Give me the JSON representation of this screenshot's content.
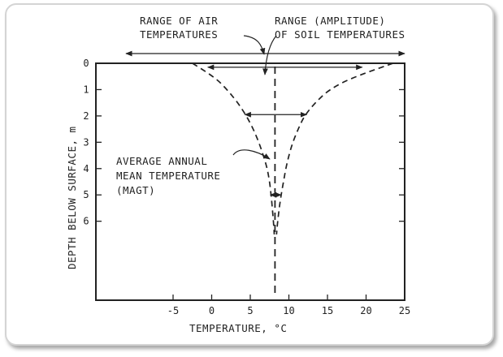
{
  "chart_data": {
    "type": "line",
    "xlabel": "TEMPERATURE, °C",
    "ylabel": "DEPTH BELOW SURFACE, m",
    "xlim": [
      -15,
      25
    ],
    "ylim": [
      9,
      0
    ],
    "x_ticks": [
      -5,
      0,
      5,
      10,
      15,
      20,
      25
    ],
    "y_ticks": [
      0,
      1,
      2,
      3,
      4,
      5,
      6
    ],
    "grid": false,
    "mean_temperature": 8.2,
    "envelope": {
      "depth": [
        0,
        0.5,
        1,
        1.5,
        2,
        2.5,
        3,
        3.5,
        4,
        4.5,
        5,
        5.5,
        6,
        6.5
      ],
      "min_temp": [
        -2.5,
        0.3,
        2.0,
        3.4,
        4.5,
        5.4,
        6.1,
        6.7,
        7.2,
        7.5,
        7.7,
        7.85,
        8.0,
        8.1
      ],
      "max_temp": [
        23.5,
        18.5,
        15.2,
        13.4,
        12.0,
        11.2,
        10.5,
        10.0,
        9.6,
        9.3,
        9.0,
        8.75,
        8.55,
        8.4
      ]
    },
    "amplitude_ranges": [
      {
        "depth": 0.15,
        "min": -0.5,
        "max": 19.5
      },
      {
        "depth": 1.95,
        "min": 4.3,
        "max": 12.3
      },
      {
        "depth": 5.0,
        "min": 7.6,
        "max": 9.0
      }
    ],
    "air_range": {
      "min": -10.0,
      "max": 25.0
    },
    "annotations": {
      "air": [
        "RANGE OF AIR",
        "TEMPERATURES"
      ],
      "soil": [
        "RANGE (AMPLITUDE)",
        "OF SOIL TEMPERATURES"
      ],
      "magt": [
        "AVERAGE ANNUAL",
        "MEAN TEMPERATURE",
        "(MAGT)"
      ]
    }
  }
}
